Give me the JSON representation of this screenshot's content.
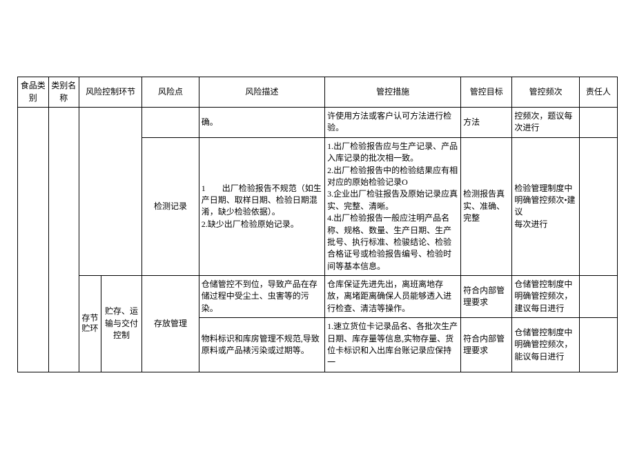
{
  "headers": {
    "h1": "食品类别",
    "h2": "类别名称",
    "h3": "风险控制环节",
    "h4": "风险点",
    "h5": "风险描述",
    "h6": "管控措施",
    "h7": "管控目标",
    "h8": "管控频次",
    "h9": "责任人"
  },
  "rows": {
    "r1": {
      "point": "",
      "desc": "确。",
      "measure": "许使用方法或客户认可方法进行检验。",
      "target": "方法",
      "freq": "控频次，题议每次进行"
    },
    "r2": {
      "point": "检测记录",
      "desc": "1　　出厂检验报告不规范（如生产日期、取样日期、检验日期混淆，缺少检验依据）。\n2.缺少出厂检验原始记录。",
      "measure": "1.出厂检验报告应与生产记录、产品入库记录的批次相一致。\n2.出厂检验报告中的检验结果应有相对应的原始检验记录O\n3.企业出厂检驻报告及原始记录应真实、完整、清晰。\n4.出厂检验报告一般应注明产品名称、规格、数量、生产日期、生产批号、执行标准、检骏结论、检验合格证号或检验报告编号、检验时间等基本信息。",
      "target": "检测报告真实、准确、完整",
      "freq": "检验管理制度中明确管控频次•建议\n每次进行"
    },
    "section": {
      "sub_a": "存节贮环",
      "sub_b": "贮存、运输与交付控制",
      "point": "存放管理"
    },
    "r3": {
      "desc": "仓储管控不到位，导致产品在存储过程中受尘土、虫害等的污染。",
      "measure": "仓库保证先进先出，离班离地存放，离堵距离确保人员能够透入进行检查、清洁等操作。",
      "target": "符合内部管理要求",
      "freq": "仓储管控制度中明确管控频次，建议每日进行"
    },
    "r4": {
      "desc": "物料标识和库房管理不规范,导致原料或产品裱污染或过期等。",
      "measure": "1.速立货位卡记录品名、各批次生产日期、库存量等信息,实物存量、货位卡标识和入出库台账记录应保持一",
      "target": "符合内部管理要求",
      "freq": "仓储管控制度中明确管控频次，能议每日进行"
    }
  }
}
